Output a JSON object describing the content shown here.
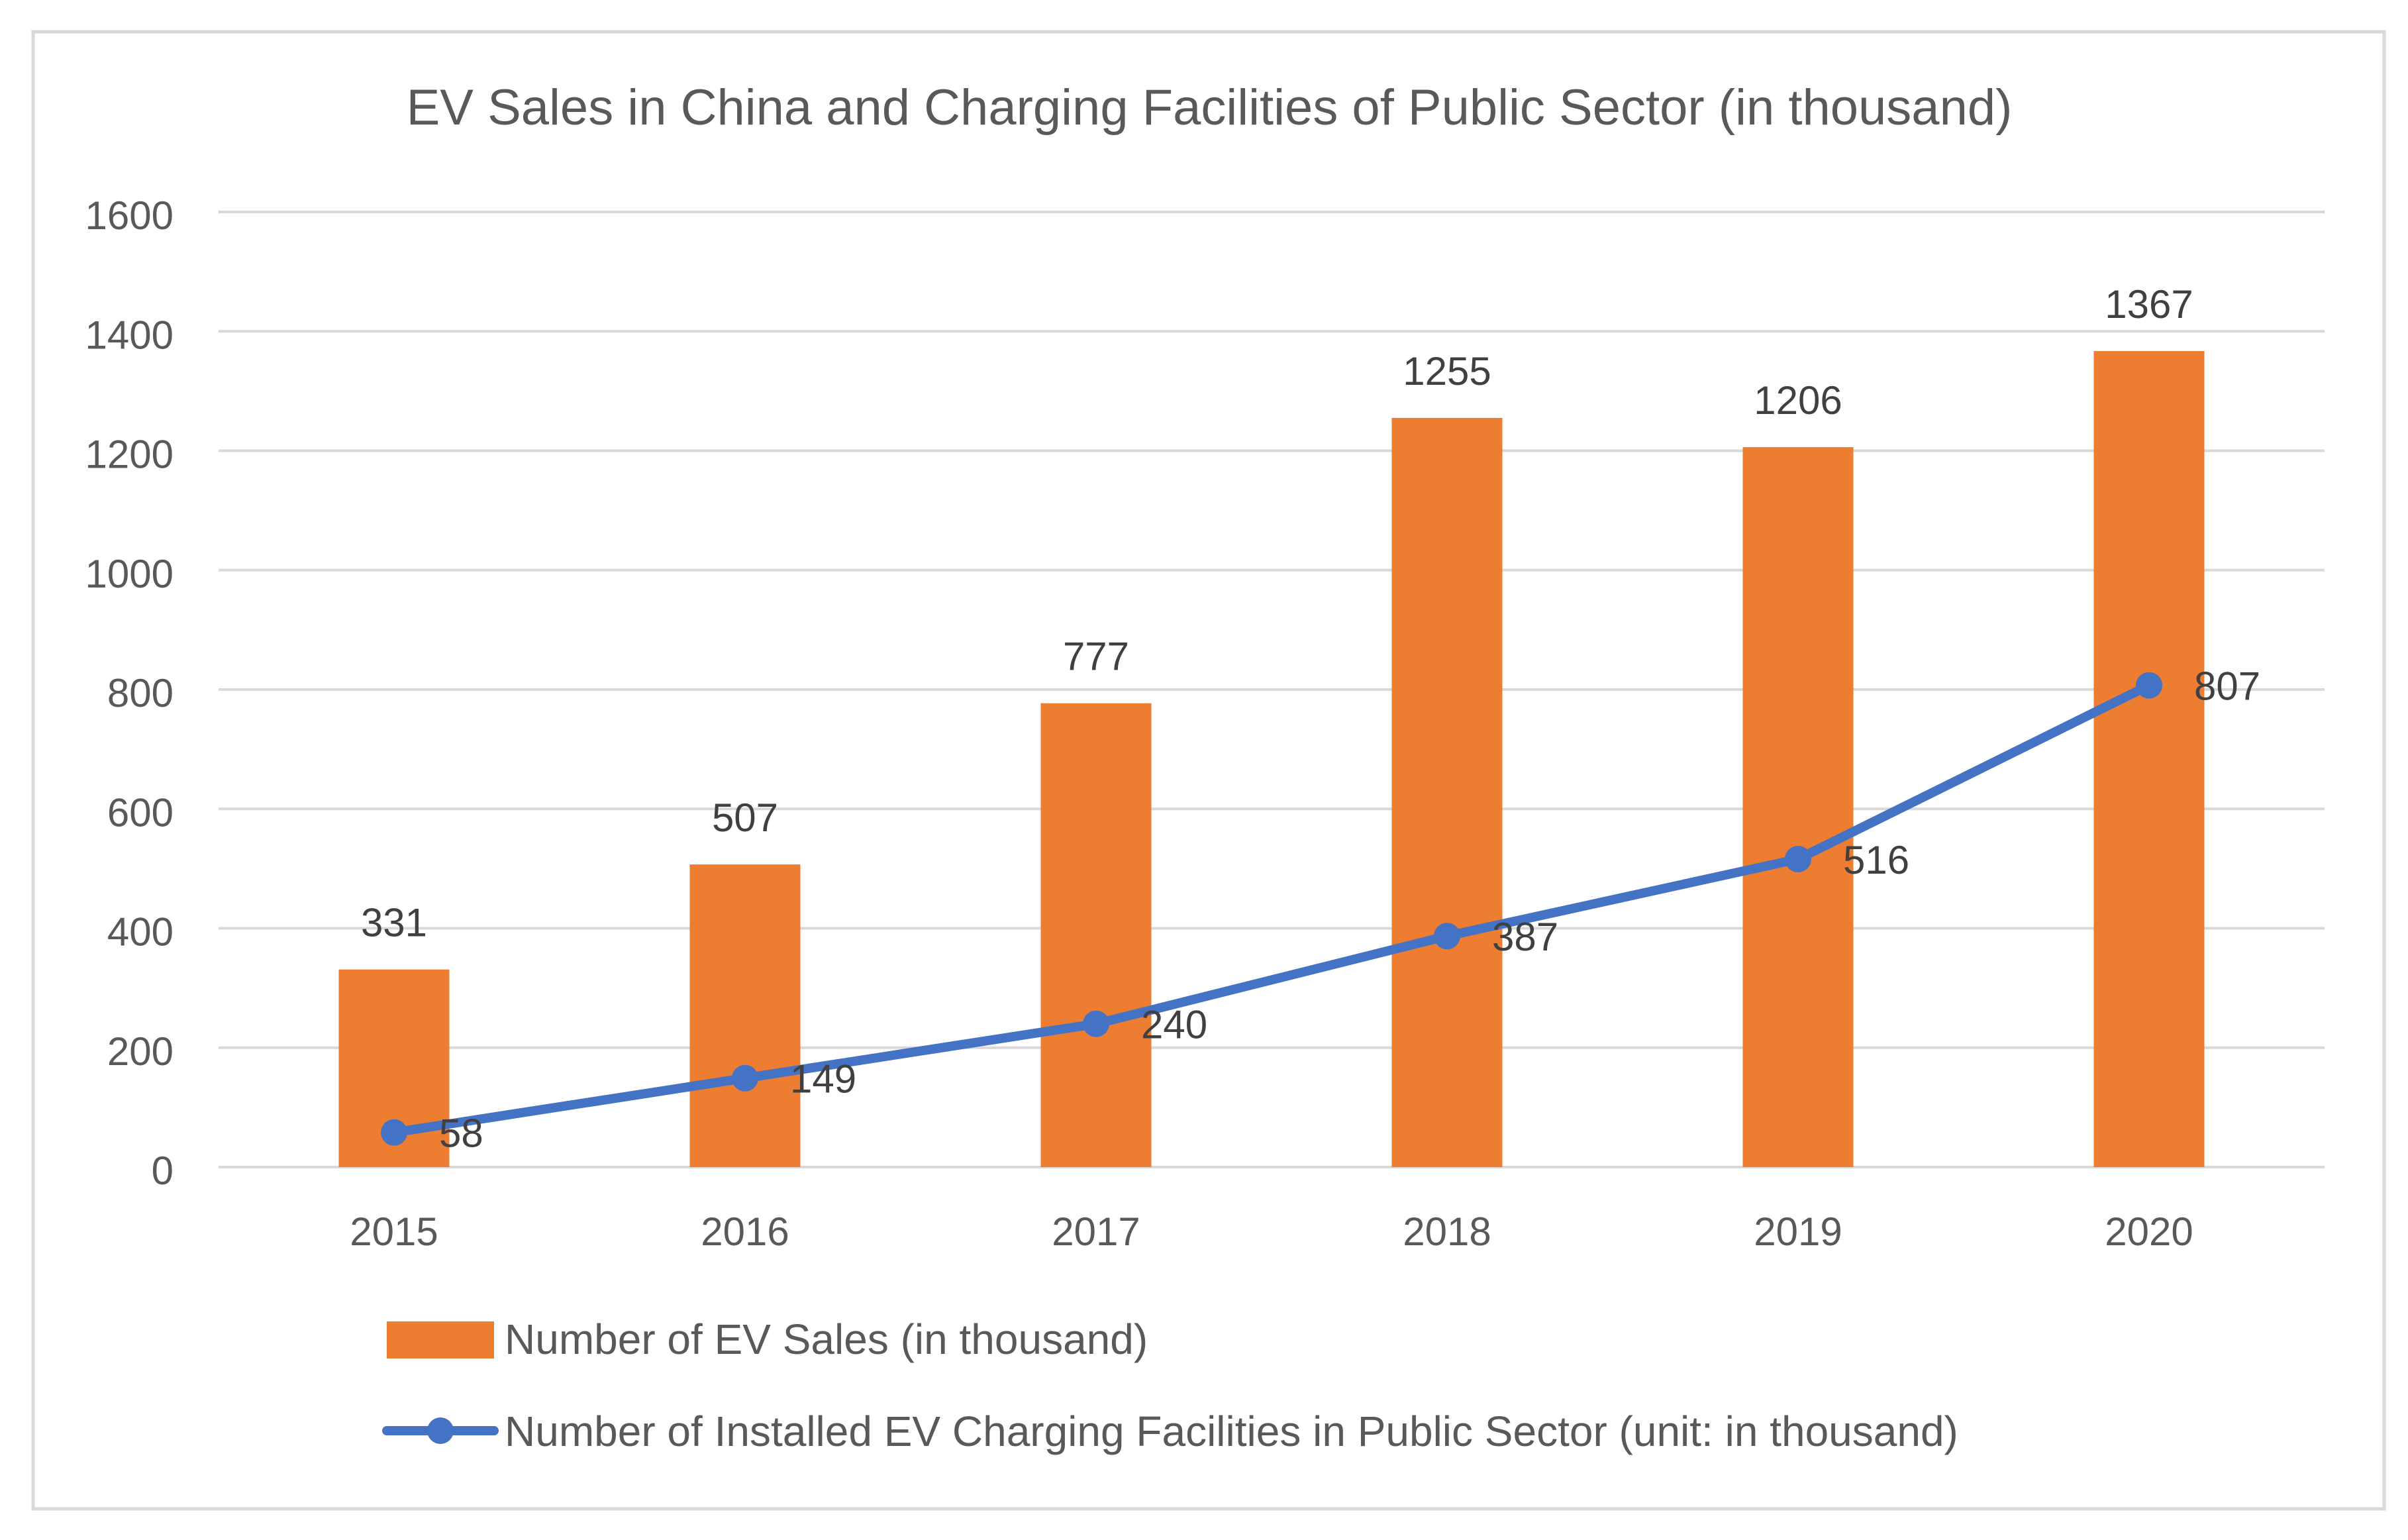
{
  "chart_data": {
    "type": "bar+line",
    "title": "EV Sales in China and Charging Facilities of Public Sector (in thousand)",
    "categories": [
      "2015",
      "2016",
      "2017",
      "2018",
      "2019",
      "2020"
    ],
    "ylim": [
      0,
      1600
    ],
    "yticks": [
      0,
      200,
      400,
      600,
      800,
      1000,
      1200,
      1400,
      1600
    ],
    "grid": true,
    "legend_position": "bottom",
    "series": [
      {
        "name": "Number of EV Sales (in thousand)",
        "type": "bar",
        "color": "#ED7D31",
        "values": [
          331,
          507,
          777,
          1255,
          1206,
          1367
        ]
      },
      {
        "name": "Number of Installed EV Charging Facilities in Public Sector (unit: in thousand)",
        "type": "line",
        "color": "#4472C4",
        "values": [
          58,
          149,
          240,
          387,
          516,
          807
        ]
      }
    ]
  }
}
